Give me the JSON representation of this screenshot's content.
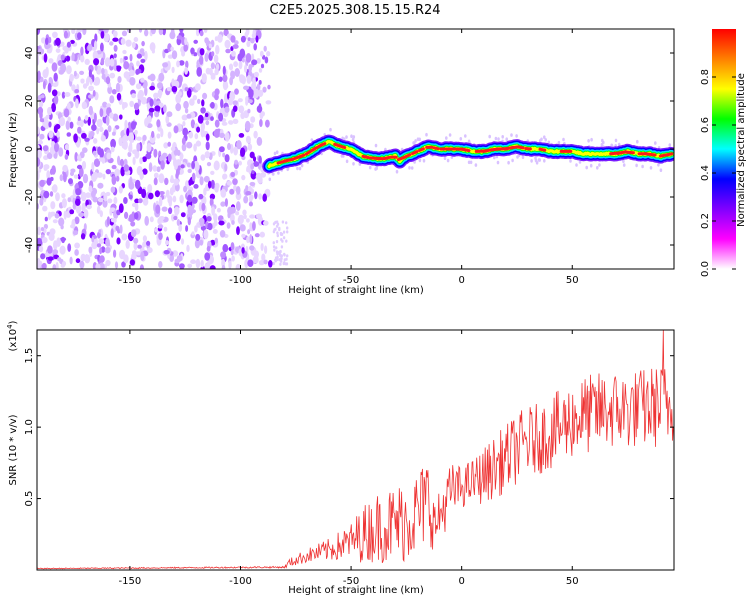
{
  "title": "C2E5.2025.308.15.15.R24",
  "chart_data": [
    {
      "type": "heatmap",
      "title": "C2E5.2025.308.15.15.R24",
      "xlabel": "Height of straight line (km)",
      "ylabel": "Frequency (Hz)",
      "xlim": [
        -192,
        96
      ],
      "ylim": [
        -50,
        50
      ],
      "xticks": [
        -150,
        -100,
        -50,
        0,
        50
      ],
      "yticks": [
        -40,
        -20,
        0,
        20,
        40
      ],
      "noise_region_x": [
        -192,
        -85
      ],
      "ridge": {
        "x": [
          -87,
          -80,
          -75,
          -70,
          -65,
          -60,
          -55,
          -50,
          -45,
          -40,
          -35,
          -30,
          -28,
          -25,
          -20,
          -15,
          -10,
          -5,
          0,
          5,
          10,
          15,
          20,
          25,
          30,
          35,
          40,
          45,
          50,
          55,
          60,
          65,
          70,
          75,
          80,
          85,
          90,
          95
        ],
        "frequency": [
          -7,
          -5,
          -4,
          -2,
          1,
          3,
          1,
          0,
          -3,
          -4,
          -4,
          -3,
          -5,
          -3,
          -1,
          1,
          0,
          0,
          0,
          -1,
          -1,
          0,
          0,
          1,
          0,
          0,
          -1,
          -1,
          -1,
          -2,
          -2,
          -2,
          -2,
          -1,
          -2,
          -2,
          -3,
          -2
        ]
      },
      "colorbar": {
        "label": "Normalized spectral amplitude",
        "range": [
          0,
          1
        ],
        "ticks": [
          "0.0",
          "0.2",
          "0.4",
          "0.6",
          "0.8"
        ],
        "colors": [
          "#ffffff",
          "#ff00ff",
          "#8000ff",
          "#0000ff",
          "#00ffff",
          "#00ff00",
          "#ffff00",
          "#ff8000",
          "#ff0000"
        ]
      }
    },
    {
      "type": "line",
      "xlabel": "Height of straight line (km)",
      "ylabel": "SNR (10 * v/v)",
      "multiplier": "(x10",
      "multiplier_exp": "4",
      "multiplier_close": ")",
      "xlim": [
        -192,
        96
      ],
      "ylim": [
        0,
        1.68
      ],
      "xticks": [
        -150,
        -100,
        -50,
        0,
        50
      ],
      "yticks": [
        "0.5",
        "1.0",
        "1.5"
      ],
      "color": "#ee3333",
      "series_envelope": {
        "x": [
          -192,
          -80,
          -78,
          -70,
          -60,
          -50,
          -45,
          -38,
          -30,
          -25,
          -20,
          -15,
          -12,
          -5,
          0,
          5,
          10,
          15,
          20,
          25,
          30,
          35,
          40,
          45,
          50,
          55,
          60,
          65,
          70,
          75,
          80,
          85,
          90,
          96
        ],
        "mean": [
          0.01,
          0.02,
          0.05,
          0.1,
          0.14,
          0.2,
          0.25,
          0.3,
          0.32,
          0.35,
          0.4,
          0.5,
          0.3,
          0.55,
          0.58,
          0.62,
          0.66,
          0.72,
          0.78,
          0.85,
          0.9,
          0.92,
          0.96,
          1.0,
          1.05,
          1.08,
          1.1,
          1.12,
          1.12,
          1.12,
          1.13,
          1.14,
          1.15,
          1.15
        ],
        "spread": [
          0.003,
          0.006,
          0.03,
          0.05,
          0.08,
          0.13,
          0.2,
          0.25,
          0.28,
          0.3,
          0.3,
          0.32,
          0.18,
          0.2,
          0.15,
          0.16,
          0.2,
          0.22,
          0.24,
          0.25,
          0.25,
          0.25,
          0.26,
          0.27,
          0.27,
          0.28,
          0.28,
          0.28,
          0.28,
          0.28,
          0.28,
          0.29,
          0.3,
          0.3
        ],
        "peak": {
          "x": 91,
          "y": 1.68
        }
      }
    }
  ]
}
